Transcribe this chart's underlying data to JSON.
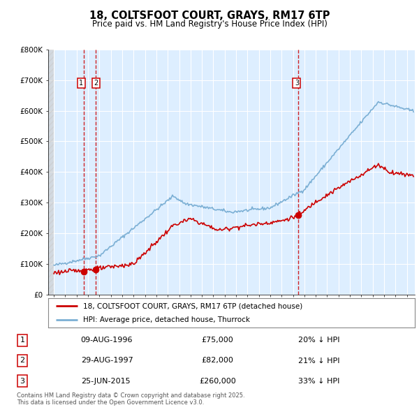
{
  "title_line1": "18, COLTSFOOT COURT, GRAYS, RM17 6TP",
  "title_line2": "Price paid vs. HM Land Registry's House Price Index (HPI)",
  "red_label": "18, COLTSFOOT COURT, GRAYS, RM17 6TP (detached house)",
  "blue_label": "HPI: Average price, detached house, Thurrock",
  "transactions": [
    {
      "num": 1,
      "date": "09-AUG-1996",
      "year": 1996.61,
      "price": 75000,
      "pct": "20% ↓ HPI"
    },
    {
      "num": 2,
      "date": "29-AUG-1997",
      "year": 1997.66,
      "price": 82000,
      "pct": "21% ↓ HPI"
    },
    {
      "num": 3,
      "date": "25-JUN-2015",
      "year": 2015.48,
      "price": 260000,
      "pct": "33% ↓ HPI"
    }
  ],
  "vline_color": "#cc0000",
  "red_line_color": "#cc0000",
  "blue_line_color": "#7bafd4",
  "background_color": "#ddeeff",
  "grid_color": "#ffffff",
  "ylim": [
    0,
    800000
  ],
  "xlim_start": 1993.5,
  "xlim_end": 2025.7,
  "footnote": "Contains HM Land Registry data © Crown copyright and database right 2025.\nThis data is licensed under the Open Government Licence v3.0."
}
